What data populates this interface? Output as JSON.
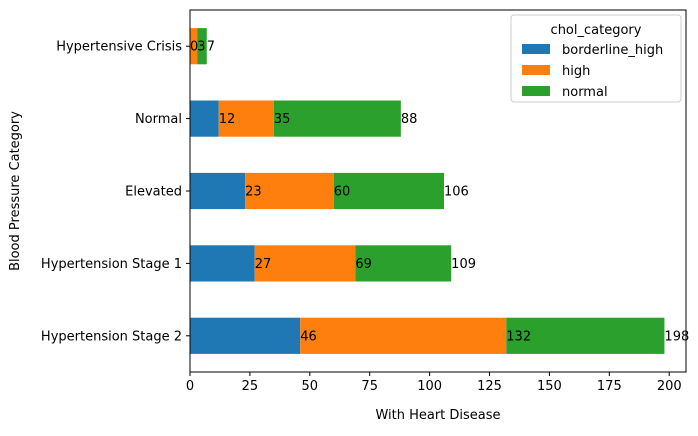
{
  "chart_data": {
    "type": "bar",
    "orientation": "horizontal",
    "stacked": true,
    "categories": [
      "Hypertension Stage 2",
      "Hypertension Stage 1",
      "Elevated",
      "Normal",
      "Hypertensive Crisis"
    ],
    "series": [
      {
        "name": "borderline_high",
        "color": "#1f77b4",
        "values": [
          46,
          27,
          23,
          12,
          0
        ]
      },
      {
        "name": "high",
        "color": "#ff7f0e",
        "values": [
          86,
          42,
          37,
          23,
          3
        ]
      },
      {
        "name": "normal",
        "color": "#2ca02c",
        "values": [
          66,
          40,
          46,
          53,
          4
        ]
      }
    ],
    "data_labels": [
      [
        "46",
        "132",
        "198"
      ],
      [
        "27",
        "69",
        "109"
      ],
      [
        "23",
        "60",
        "106"
      ],
      [
        "12",
        "35",
        "88"
      ],
      [
        "0",
        "3",
        "7"
      ]
    ],
    "xlabel": "With Heart Disease",
    "ylabel": "Blood Pressure Category",
    "xlim": [
      0,
      207
    ],
    "xticks": [
      0,
      25,
      50,
      75,
      100,
      125,
      150,
      175,
      200
    ],
    "legend": {
      "title": "chol_category",
      "position": "top-right"
    },
    "grid": false
  }
}
